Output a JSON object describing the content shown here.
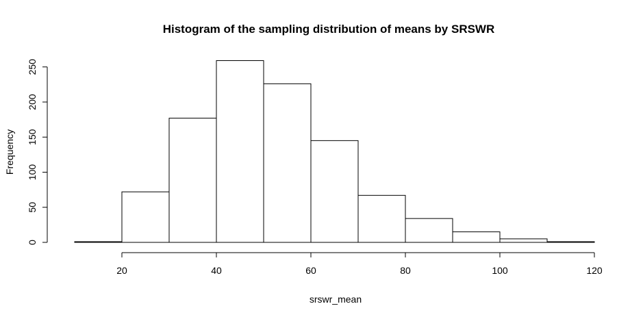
{
  "chart_data": {
    "type": "bar",
    "title": "Histogram of the sampling distribution of means by SRSWR",
    "xlabel": "srswr_mean",
    "ylabel": "Frequency",
    "bins": [
      {
        "start": 10,
        "end": 20,
        "count": 1
      },
      {
        "start": 20,
        "end": 30,
        "count": 72
      },
      {
        "start": 30,
        "end": 40,
        "count": 177
      },
      {
        "start": 40,
        "end": 50,
        "count": 259
      },
      {
        "start": 50,
        "end": 60,
        "count": 226
      },
      {
        "start": 60,
        "end": 70,
        "count": 145
      },
      {
        "start": 70,
        "end": 80,
        "count": 67
      },
      {
        "start": 80,
        "end": 90,
        "count": 34
      },
      {
        "start": 90,
        "end": 100,
        "count": 15
      },
      {
        "start": 100,
        "end": 110,
        "count": 5
      },
      {
        "start": 110,
        "end": 120,
        "count": 1
      }
    ],
    "xlim": [
      10,
      120
    ],
    "ylim": [
      0,
      260
    ],
    "x_ticks": [
      20,
      40,
      60,
      80,
      100,
      120
    ],
    "y_ticks": [
      0,
      50,
      100,
      150,
      200,
      250
    ],
    "grid": false,
    "bar_fill": "#ffffff",
    "bar_stroke": "#000000"
  }
}
